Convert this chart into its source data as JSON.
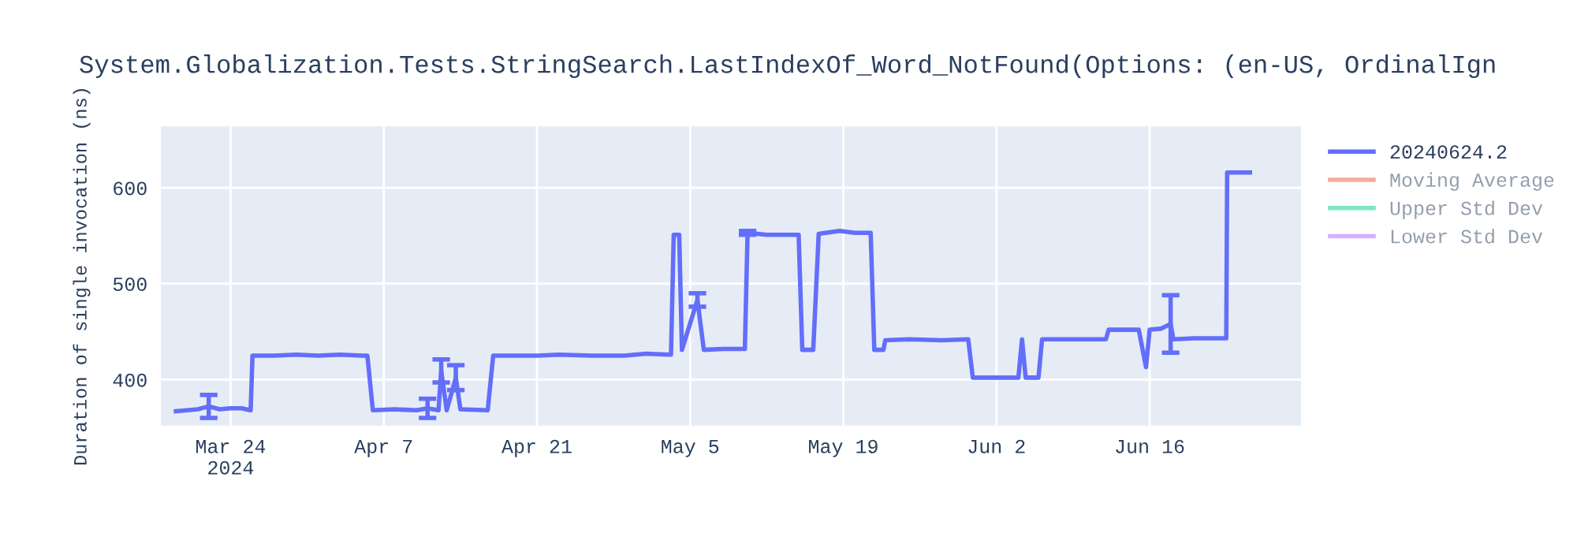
{
  "chart_data": {
    "type": "line",
    "title": "System.Globalization.Tests.StringSearch.LastIndexOf_Word_NotFound(Options: (en-US, OrdinalIgn",
    "ylabel": "Duration of single invocation (ns)",
    "x": [
      "2024-03-19",
      "2024-03-20",
      "2024-03-21",
      "2024-03-22",
      "2024-03-23",
      "2024-03-24",
      "2024-03-25",
      "2024-03-25T20:00",
      "2024-03-26",
      "2024-03-28",
      "2024-03-30",
      "2024-04-01",
      "2024-04-03",
      "2024-04-05",
      "2024-04-05T12:00",
      "2024-04-06",
      "2024-04-08",
      "2024-04-10",
      "2024-04-11",
      "2024-04-12",
      "2024-04-12T06:00",
      "2024-04-12T18:00",
      "2024-04-13T14:00",
      "2024-04-14",
      "2024-04-16T12:00",
      "2024-04-17",
      "2024-04-19",
      "2024-04-21",
      "2024-04-23",
      "2024-04-26",
      "2024-04-29",
      "2024-05-01",
      "2024-05-03",
      "2024-05-03T06:00",
      "2024-05-03T12:00",
      "2024-05-04",
      "2024-05-04T06:00",
      "2024-05-05T16:00",
      "2024-05-06T06:00",
      "2024-05-08",
      "2024-05-10",
      "2024-05-10T06:00",
      "2024-05-12",
      "2024-05-14",
      "2024-05-14T22:00",
      "2024-05-15T06:00",
      "2024-05-16T06:00",
      "2024-05-16T18:00",
      "2024-05-18T16:00",
      "2024-05-20",
      "2024-05-21T12:00",
      "2024-05-21T20:00",
      "2024-05-22T16:00",
      "2024-05-22T20:00",
      "2024-05-25",
      "2024-05-28",
      "2024-05-30T10:00",
      "2024-05-30T20:00",
      "2024-06-01",
      "2024-06-04",
      "2024-06-04T08:00",
      "2024-06-04T16:00",
      "2024-06-05T20:00",
      "2024-06-06T04:00",
      "2024-06-09",
      "2024-06-12",
      "2024-06-12T06:00",
      "2024-06-15",
      "2024-06-15T16:00",
      "2024-06-16",
      "2024-06-17",
      "2024-06-17T22:00",
      "2024-06-18T04:00",
      "2024-06-20",
      "2024-06-23",
      "2024-06-23T02:00",
      "2024-06-25T04:00"
    ],
    "series": [
      {
        "name": "20240624.2",
        "color": "#636efa",
        "values": [
          367,
          368,
          369,
          372,
          369,
          370,
          370,
          368,
          425,
          425,
          426,
          425,
          426,
          425,
          425,
          368,
          369,
          368,
          370,
          368,
          409,
          368,
          402,
          369,
          368,
          425,
          425,
          425,
          426,
          425,
          425,
          427,
          426,
          426,
          551,
          551,
          431,
          483,
          431,
          432,
          432,
          553,
          551,
          551,
          551,
          431,
          431,
          552,
          555,
          553,
          553,
          431,
          431,
          441,
          442,
          441,
          442,
          402,
          402,
          402,
          442,
          402,
          402,
          442,
          442,
          442,
          452,
          452,
          413,
          452,
          453,
          458,
          442,
          443,
          443,
          616,
          616
        ],
        "errors": [
          null,
          null,
          null,
          12,
          null,
          null,
          null,
          null,
          null,
          null,
          null,
          null,
          null,
          null,
          null,
          null,
          null,
          null,
          10,
          null,
          12,
          null,
          13,
          null,
          null,
          null,
          null,
          null,
          null,
          null,
          null,
          null,
          null,
          null,
          null,
          null,
          null,
          7,
          null,
          null,
          null,
          2,
          null,
          null,
          null,
          null,
          null,
          null,
          null,
          null,
          null,
          null,
          null,
          null,
          null,
          null,
          null,
          null,
          null,
          null,
          null,
          null,
          null,
          null,
          null,
          null,
          null,
          null,
          null,
          null,
          null,
          30,
          null,
          null,
          null,
          null,
          null
        ]
      },
      {
        "name": "Moving Average",
        "color": "#ef553b",
        "values": [
          null,
          null,
          null,
          null,
          null,
          null,
          null,
          null,
          null,
          null,
          null,
          null,
          null,
          null,
          null,
          null,
          null,
          null,
          null,
          null,
          null,
          null,
          null,
          null,
          null,
          null,
          null,
          null,
          null,
          null,
          null,
          null,
          null,
          null,
          null,
          null,
          null,
          null,
          null,
          null,
          null,
          null,
          null,
          null,
          null,
          null,
          null,
          null,
          null,
          null,
          null,
          null,
          null,
          null,
          null,
          null,
          null,
          null,
          null,
          null,
          null,
          null,
          null,
          null,
          null,
          null,
          null,
          null,
          null,
          null,
          null,
          null,
          null,
          null,
          null,
          null,
          null
        ]
      },
      {
        "name": "Upper Std Dev",
        "color": "#00cc96",
        "values": [
          null,
          null,
          null,
          null,
          null,
          null,
          null,
          null,
          null,
          null,
          null,
          null,
          null,
          null,
          null,
          null,
          null,
          null,
          null,
          null,
          null,
          null,
          null,
          null,
          null,
          null,
          null,
          null,
          null,
          null,
          null,
          null,
          null,
          null,
          null,
          null,
          null,
          null,
          null,
          null,
          null,
          null,
          null,
          null,
          null,
          null,
          null,
          null,
          null,
          null,
          null,
          null,
          null,
          null,
          null,
          null,
          null,
          null,
          null,
          null,
          null,
          null,
          null,
          null,
          null,
          null,
          null,
          null,
          null,
          null,
          null,
          null,
          null,
          null,
          null,
          null,
          null
        ]
      },
      {
        "name": "Lower Std Dev",
        "color": "#ab63fa",
        "values": [
          null,
          null,
          null,
          null,
          null,
          null,
          null,
          null,
          null,
          null,
          null,
          null,
          null,
          null,
          null,
          null,
          null,
          null,
          null,
          null,
          null,
          null,
          null,
          null,
          null,
          null,
          null,
          null,
          null,
          null,
          null,
          null,
          null,
          null,
          null,
          null,
          null,
          null,
          null,
          null,
          null,
          null,
          null,
          null,
          null,
          null,
          null,
          null,
          null,
          null,
          null,
          null,
          null,
          null,
          null,
          null,
          null,
          null,
          null,
          null,
          null,
          null,
          null,
          null,
          null,
          null,
          null,
          null,
          null,
          null,
          null,
          null,
          null,
          null,
          null,
          null,
          null
        ]
      }
    ],
    "xlim": [
      "2024-03-17T15:00",
      "2024-06-29T20:00"
    ],
    "xticks": [
      {
        "value": "2024-03-24",
        "label": "Mar 24\n2024"
      },
      {
        "value": "2024-04-07",
        "label": "Apr 7"
      },
      {
        "value": "2024-04-21",
        "label": "Apr 21"
      },
      {
        "value": "2024-05-05",
        "label": "May 5"
      },
      {
        "value": "2024-05-19",
        "label": "May 19"
      },
      {
        "value": "2024-06-02",
        "label": "Jun 2"
      },
      {
        "value": "2024-06-16",
        "label": "Jun 16"
      }
    ],
    "ylim": [
      352,
      664
    ],
    "yticks": [
      400,
      500,
      600
    ],
    "grid": true,
    "legend": "top right",
    "marker": "none",
    "line_style": "solid"
  }
}
